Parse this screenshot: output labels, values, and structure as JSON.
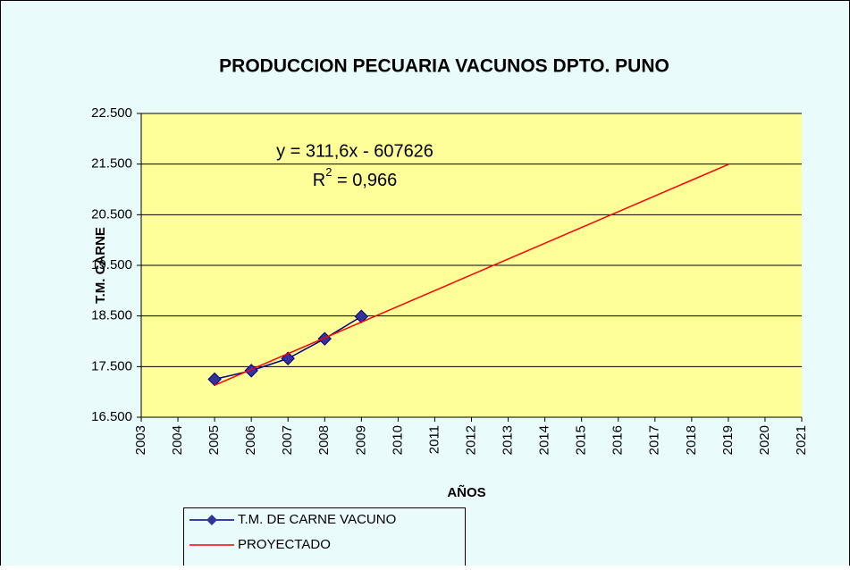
{
  "chart_data": {
    "type": "line",
    "title": "PRODUCCION PECUARIA VACUNOS DPTO. PUNO",
    "x_label": "AÑOS",
    "y_label": "T.M. CARNE",
    "xlim": [
      2003,
      2021
    ],
    "xticks": [
      2003,
      2004,
      2005,
      2006,
      2007,
      2008,
      2009,
      2010,
      2011,
      2012,
      2013,
      2014,
      2015,
      2016,
      2017,
      2018,
      2019,
      2020,
      2021
    ],
    "ylim": [
      16500,
      22500
    ],
    "yticks": [
      {
        "value": 16500,
        "label": "16.500"
      },
      {
        "value": 17500,
        "label": "17.500"
      },
      {
        "value": 18500,
        "label": "18.500"
      },
      {
        "value": 19500,
        "label": "19.500"
      },
      {
        "value": 20500,
        "label": "20.500"
      },
      {
        "value": 21500,
        "label": "21.500"
      },
      {
        "value": 22500,
        "label": "22.500"
      }
    ],
    "grid": true,
    "legend": "bottom-left",
    "series": [
      {
        "name": "T.M. DE CARNE VACUNO",
        "color": "#000080",
        "marker": "diamond",
        "x": [
          2005,
          2006,
          2007,
          2008,
          2009
        ],
        "values": [
          17250,
          17420,
          17660,
          18050,
          18490
        ]
      },
      {
        "name": "PROYECTADO",
        "color": "#ff0000",
        "marker": "none",
        "x": [
          2005,
          2019
        ],
        "values": [
          17132,
          21494
        ]
      }
    ],
    "trendline": {
      "equation": "y = 311,6x - 607626",
      "r_squared": {
        "symbol": "R",
        "exponent": "2",
        "text": " = 0,966"
      }
    }
  }
}
